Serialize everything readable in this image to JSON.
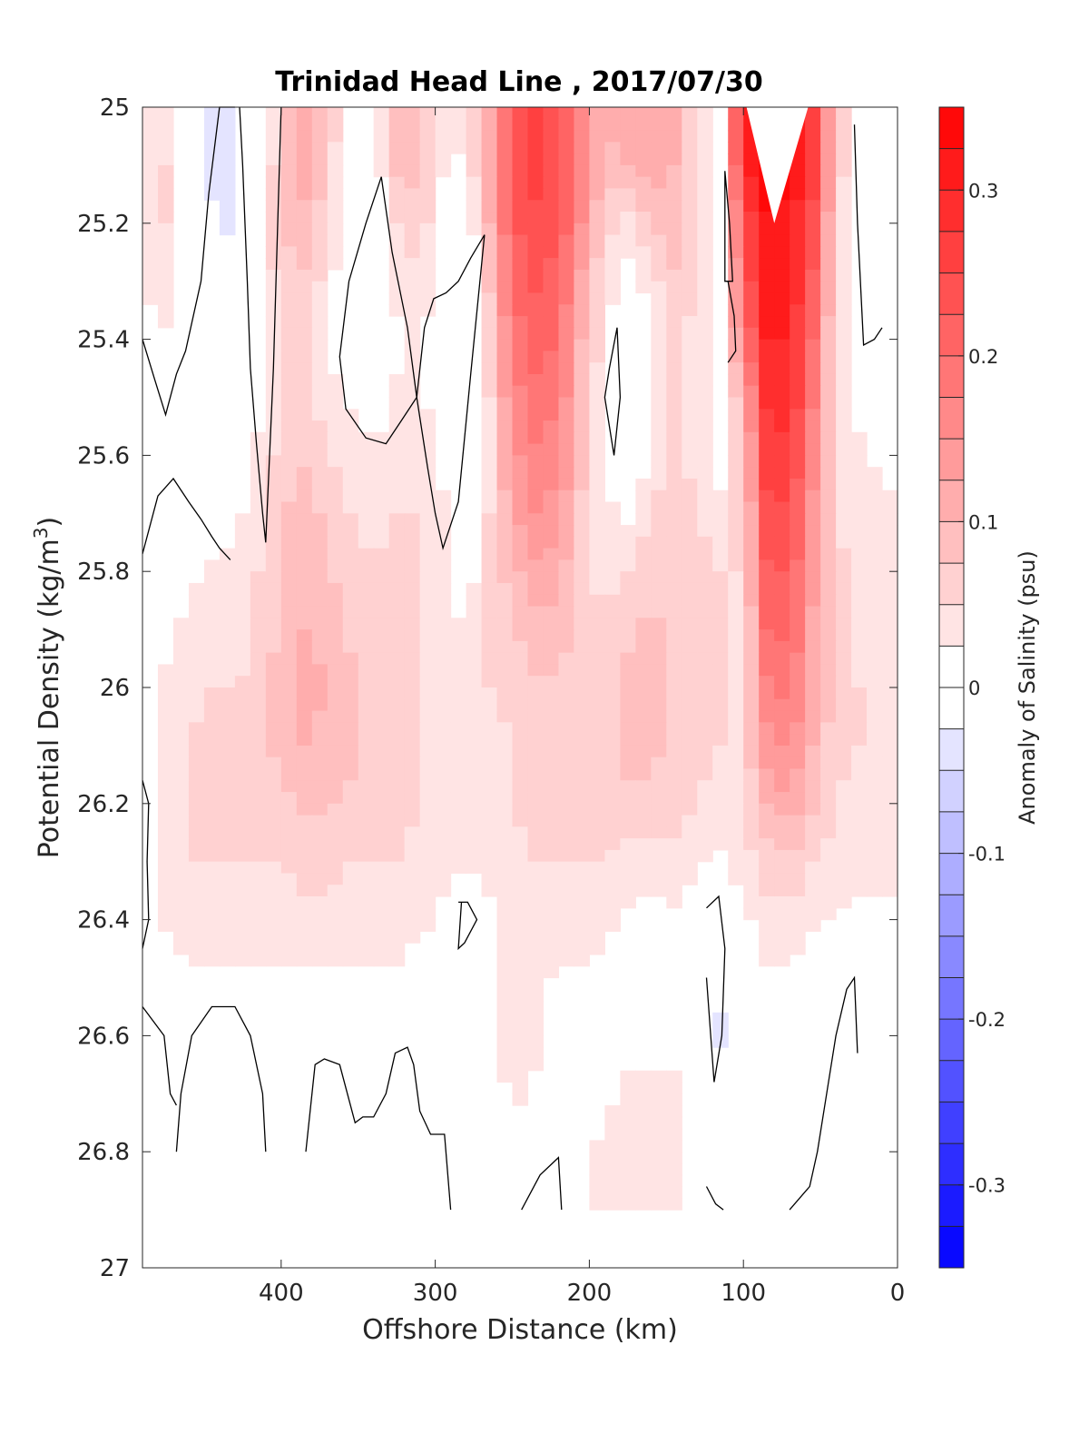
{
  "chart_data": {
    "type": "heatmap",
    "title": "Trinidad Head Line , 2017/07/30",
    "xlabel": "Offshore Distance (km)",
    "ylabel_main": "Potential Density (kg/m",
    "ylabel_sup": "3",
    "ylabel_close": ")",
    "colorbar_label": "Anomaly of Salinity (psu)",
    "xlim": [
      490,
      0
    ],
    "ylim": [
      25,
      27
    ],
    "x_ticks": [
      400,
      300,
      200,
      100,
      0
    ],
    "y_ticks": [
      "25",
      "25.2",
      "25.4",
      "25.6",
      "25.8",
      "26",
      "26.2",
      "26.4",
      "26.6",
      "26.8",
      "27"
    ],
    "y_tick_values": [
      25,
      25.2,
      25.4,
      25.6,
      25.8,
      26,
      26.2,
      26.4,
      26.6,
      26.8,
      27
    ],
    "colorbar_ticks": [
      "0.3",
      "0.2",
      "0.1",
      "0",
      "-0.1",
      "-0.2",
      "-0.3"
    ],
    "colorbar_tick_values": [
      0.3,
      0.2,
      0.1,
      0,
      -0.1,
      -0.2,
      -0.3
    ],
    "clim": [
      -0.35,
      0.35
    ],
    "colormap": {
      "negative": "#0000ff",
      "zero": "#ffffff",
      "positive": "#ff0000"
    },
    "levels_step": 0.025,
    "x": [
      490,
      475,
      460,
      445,
      430,
      415,
      400,
      385,
      370,
      355,
      340,
      325,
      310,
      295,
      280,
      265,
      250,
      235,
      220,
      205,
      190,
      175,
      160,
      145,
      130,
      115,
      100,
      85,
      70,
      55,
      40,
      25,
      10
    ],
    "y": [
      25.0,
      25.1,
      25.2,
      25.3,
      25.4,
      25.5,
      25.6,
      25.7,
      25.8,
      25.9,
      26.0,
      26.1,
      26.2,
      26.3,
      26.4,
      26.5,
      26.6,
      26.7,
      26.8,
      26.9
    ],
    "z": [
      [
        0.04,
        0.04,
        0.0,
        -0.03,
        -0.04,
        0.01,
        0.06,
        0.11,
        0.07,
        0.02,
        0.03,
        0.09,
        0.07,
        0.03,
        0.03,
        0.12,
        0.22,
        0.25,
        0.23,
        0.16,
        0.1,
        0.12,
        0.12,
        0.1,
        0.06,
        0.0,
        0.3,
        0.34,
        0.33,
        0.25,
        0.08,
        0.0,
        0.0
      ],
      [
        0.04,
        0.05,
        0.0,
        -0.03,
        -0.04,
        0.01,
        0.07,
        0.11,
        0.07,
        0.0,
        0.0,
        0.08,
        0.08,
        0.03,
        0.02,
        0.12,
        0.23,
        0.26,
        0.24,
        0.16,
        0.09,
        0.1,
        0.12,
        0.1,
        0.06,
        0.0,
        0.3,
        0.34,
        0.33,
        0.26,
        0.08,
        0.0,
        0.0
      ],
      [
        0.04,
        0.05,
        0.0,
        -0.02,
        -0.03,
        0.02,
        0.08,
        0.09,
        0.06,
        -0.01,
        -0.01,
        0.05,
        0.07,
        0.01,
        -0.01,
        0.1,
        0.22,
        0.24,
        0.23,
        0.15,
        0.06,
        0.04,
        0.08,
        0.09,
        0.05,
        -0.01,
        0.24,
        0.32,
        0.32,
        0.24,
        0.06,
        -0.01,
        0.0
      ],
      [
        0.03,
        0.04,
        0.0,
        -0.02,
        -0.02,
        0.02,
        0.06,
        0.07,
        0.04,
        -0.01,
        -0.01,
        0.03,
        0.05,
        0.0,
        -0.02,
        0.08,
        0.2,
        0.23,
        0.21,
        0.12,
        0.04,
        0.01,
        0.04,
        0.07,
        0.05,
        0.0,
        0.22,
        0.31,
        0.31,
        0.22,
        0.05,
        0.0,
        0.0
      ],
      [
        0.01,
        0.02,
        0.0,
        -0.02,
        -0.02,
        0.02,
        0.05,
        0.05,
        0.03,
        -0.01,
        -0.01,
        0.02,
        0.03,
        -0.01,
        -0.02,
        0.06,
        0.18,
        0.21,
        0.2,
        0.1,
        0.03,
        -0.01,
        0.02,
        0.05,
        0.04,
        0.0,
        0.18,
        0.3,
        0.3,
        0.2,
        0.04,
        0.0,
        0.0
      ],
      [
        -0.01,
        0.0,
        0.01,
        -0.02,
        -0.02,
        0.02,
        0.05,
        0.05,
        0.04,
        0.02,
        0.0,
        0.03,
        0.04,
        -0.01,
        -0.01,
        0.05,
        0.16,
        0.19,
        0.18,
        0.09,
        0.02,
        -0.02,
        0.02,
        0.05,
        0.04,
        0.02,
        0.1,
        0.28,
        0.29,
        0.18,
        0.04,
        0.02,
        0.0
      ],
      [
        0.0,
        0.01,
        0.02,
        -0.01,
        -0.01,
        0.03,
        0.06,
        0.07,
        0.05,
        0.04,
        0.03,
        0.04,
        0.05,
        0.02,
        -0.01,
        0.04,
        0.14,
        0.17,
        0.16,
        0.08,
        0.03,
        -0.01,
        0.03,
        0.06,
        0.04,
        0.02,
        0.08,
        0.26,
        0.27,
        0.16,
        0.04,
        0.03,
        0.02
      ],
      [
        -0.01,
        0.0,
        0.02,
        0.01,
        0.02,
        0.04,
        0.07,
        0.09,
        0.07,
        0.05,
        0.04,
        0.05,
        0.05,
        0.03,
        -0.01,
        0.05,
        0.12,
        0.15,
        0.14,
        0.07,
        0.03,
        0.02,
        0.05,
        0.07,
        0.05,
        0.03,
        0.06,
        0.24,
        0.25,
        0.14,
        0.05,
        0.03,
        0.03
      ],
      [
        0.0,
        0.01,
        0.02,
        0.03,
        0.03,
        0.05,
        0.07,
        0.09,
        0.08,
        0.06,
        0.05,
        0.06,
        0.05,
        0.03,
        0.01,
        0.05,
        0.09,
        0.12,
        0.11,
        0.06,
        0.04,
        0.05,
        0.07,
        0.07,
        0.06,
        0.05,
        0.05,
        0.22,
        0.23,
        0.13,
        0.06,
        0.04,
        0.03
      ],
      [
        0.01,
        0.02,
        0.03,
        0.03,
        0.03,
        0.05,
        0.08,
        0.1,
        0.09,
        0.07,
        0.06,
        0.06,
        0.05,
        0.04,
        0.02,
        0.05,
        0.07,
        0.09,
        0.09,
        0.06,
        0.05,
        0.07,
        0.08,
        0.07,
        0.06,
        0.05,
        0.04,
        0.2,
        0.21,
        0.12,
        0.06,
        0.04,
        0.03
      ],
      [
        0.02,
        0.03,
        0.04,
        0.05,
        0.05,
        0.06,
        0.09,
        0.11,
        0.1,
        0.08,
        0.07,
        0.06,
        0.05,
        0.04,
        0.03,
        0.05,
        0.06,
        0.07,
        0.07,
        0.06,
        0.06,
        0.08,
        0.08,
        0.07,
        0.06,
        0.05,
        0.04,
        0.17,
        0.19,
        0.11,
        0.06,
        0.05,
        0.03
      ],
      [
        0.02,
        0.03,
        0.05,
        0.06,
        0.06,
        0.07,
        0.08,
        0.1,
        0.09,
        0.08,
        0.07,
        0.06,
        0.05,
        0.04,
        0.03,
        0.04,
        0.05,
        0.06,
        0.06,
        0.06,
        0.07,
        0.08,
        0.08,
        0.07,
        0.06,
        0.05,
        0.05,
        0.14,
        0.16,
        0.1,
        0.06,
        0.05,
        0.03
      ],
      [
        0.02,
        0.03,
        0.05,
        0.06,
        0.06,
        0.06,
        0.07,
        0.08,
        0.08,
        0.07,
        0.06,
        0.06,
        0.05,
        0.04,
        0.03,
        0.04,
        0.05,
        0.06,
        0.06,
        0.06,
        0.06,
        0.07,
        0.07,
        0.06,
        0.05,
        0.04,
        0.05,
        0.1,
        0.12,
        0.08,
        0.05,
        0.04,
        0.03
      ],
      [
        0.02,
        0.03,
        0.05,
        0.05,
        0.05,
        0.05,
        0.05,
        0.06,
        0.06,
        0.05,
        0.05,
        0.05,
        0.04,
        0.03,
        0.03,
        0.03,
        0.04,
        0.05,
        0.05,
        0.05,
        0.05,
        0.04,
        0.03,
        0.04,
        0.03,
        0.02,
        0.04,
        0.06,
        0.07,
        0.05,
        0.04,
        0.03,
        0.03
      ],
      [
        0.02,
        0.03,
        0.04,
        0.04,
        0.04,
        0.04,
        0.04,
        0.04,
        0.04,
        0.04,
        0.04,
        0.04,
        0.03,
        0.02,
        0.0,
        0.02,
        0.03,
        0.04,
        0.04,
        0.04,
        0.03,
        0.02,
        0.02,
        0.02,
        0.0,
        -0.01,
        0.02,
        0.04,
        0.04,
        0.03,
        0.02,
        0.02,
        0.02
      ],
      [
        0.0,
        0.01,
        0.02,
        0.02,
        0.02,
        0.02,
        0.02,
        0.02,
        0.02,
        0.02,
        0.02,
        0.02,
        0.01,
        0.01,
        0.01,
        0.02,
        0.03,
        0.03,
        0.02,
        0.02,
        0.02,
        0.0,
        0.01,
        0.02,
        0.0,
        -0.02,
        0.0,
        0.02,
        0.02,
        0.01,
        0.01,
        0.01,
        0.0
      ],
      [
        0.0,
        0.0,
        0.0,
        -0.01,
        -0.01,
        0.0,
        0.01,
        0.01,
        0.01,
        0.01,
        0.0,
        0.0,
        0.0,
        0.01,
        0.01,
        0.02,
        0.04,
        0.03,
        0.01,
        0.01,
        0.02,
        0.02,
        0.02,
        0.02,
        0.0,
        -0.03,
        0.0,
        0.02,
        0.02,
        0.01,
        0.0,
        0.0,
        0.0
      ],
      [
        0.0,
        -0.01,
        -0.01,
        -0.01,
        -0.01,
        0.0,
        0.0,
        0.0,
        0.0,
        0.0,
        0.0,
        0.0,
        0.0,
        0.0,
        0.0,
        0.01,
        0.03,
        0.02,
        0.01,
        0.01,
        0.02,
        0.03,
        0.03,
        0.03,
        0.01,
        -0.01,
        0.01,
        0.02,
        0.02,
        0.01,
        0.0,
        0.0,
        0.0
      ],
      [
        0.01,
        0.0,
        -0.01,
        -0.02,
        -0.02,
        0.0,
        0.0,
        0.0,
        0.0,
        0.0,
        0.0,
        0.0,
        0.0,
        0.0,
        0.0,
        0.0,
        0.02,
        0.02,
        0.01,
        0.02,
        0.03,
        0.03,
        0.03,
        0.03,
        0.02,
        0.0,
        0.01,
        0.02,
        0.01,
        0.0,
        0.0,
        0.0,
        0.0
      ],
      [
        0.0,
        0.0,
        0.0,
        0.0,
        0.0,
        0.0,
        0.0,
        0.0,
        0.0,
        -0.01,
        -0.02,
        0.0,
        0.0,
        0.0,
        0.0,
        0.0,
        0.01,
        0.01,
        0.01,
        0.02,
        0.03,
        0.03,
        0.03,
        0.03,
        0.02,
        0.0,
        0.0,
        0.01,
        0.0,
        0.0,
        0.0,
        0.0,
        0.0
      ]
    ],
    "z_ymax_data": 26.9,
    "cap_notch": {
      "x": [
        98,
        80,
        58
      ],
      "y": [
        25.0,
        25.2,
        25.0
      ]
    },
    "contour_lines": [
      {
        "x": [
          490,
          482,
          475,
          468,
          462,
          452,
          447,
          440,
          430
        ],
        "y": [
          25.4,
          25.47,
          25.53,
          25.46,
          25.42,
          25.3,
          25.15,
          25.0,
          25.0
        ]
      },
      {
        "x": [
          490,
          480,
          470,
          460,
          452,
          445,
          440,
          433
        ],
        "y": [
          25.77,
          25.67,
          25.64,
          25.68,
          25.71,
          25.74,
          25.76,
          25.78
        ]
      },
      {
        "x": [
          427,
          425,
          422,
          420,
          416,
          412,
          410,
          405,
          400
        ],
        "y": [
          25.0,
          25.1,
          25.3,
          25.45,
          25.58,
          25.7,
          25.75,
          25.45,
          25.0
        ]
      },
      {
        "x": [
          335,
          345,
          356,
          362,
          358,
          345,
          332,
          322,
          312
        ],
        "y": [
          25.12,
          25.2,
          25.3,
          25.43,
          25.52,
          25.57,
          25.58,
          25.54,
          25.5
        ]
      },
      {
        "x": [
          335,
          328,
          318,
          312,
          305,
          300,
          295,
          285,
          277,
          268
        ],
        "y": [
          25.12,
          25.25,
          25.38,
          25.5,
          25.62,
          25.7,
          25.76,
          25.68,
          25.46,
          25.22
        ]
      },
      {
        "x": [
          312,
          307,
          301,
          293,
          285,
          277,
          268
        ],
        "y": [
          25.5,
          25.38,
          25.33,
          25.32,
          25.3,
          25.26,
          25.22
        ]
      },
      {
        "x": [
          182,
          187,
          190,
          184,
          180,
          182
        ],
        "y": [
          25.38,
          25.45,
          25.5,
          25.6,
          25.5,
          25.38
        ]
      },
      {
        "x": [
          112,
          109,
          107,
          112,
          112
        ],
        "y": [
          25.11,
          25.2,
          25.3,
          25.3,
          25.11
        ]
      },
      {
        "x": [
          110,
          106,
          105,
          110
        ],
        "y": [
          25.3,
          25.36,
          25.42,
          25.44
        ]
      },
      {
        "x": [
          28,
          26,
          22,
          15,
          10
        ],
        "y": [
          25.03,
          25.2,
          25.41,
          25.4,
          25.38
        ]
      },
      {
        "x": [
          490,
          486,
          487,
          486,
          490
        ],
        "y": [
          26.16,
          26.2,
          26.3,
          26.4,
          26.45
        ]
      },
      {
        "x": [
          490,
          476,
          472,
          468
        ],
        "y": [
          26.55,
          26.6,
          26.7,
          26.72
        ]
      },
      {
        "x": [
          468,
          465,
          458,
          445,
          430,
          420,
          412,
          410
        ],
        "y": [
          26.8,
          26.7,
          26.6,
          26.55,
          26.55,
          26.6,
          26.7,
          26.8
        ]
      },
      {
        "x": [
          384,
          378,
          372,
          362,
          357,
          352,
          347,
          340,
          332,
          326,
          318,
          314,
          310,
          303,
          294,
          290
        ],
        "y": [
          26.8,
          26.65,
          26.64,
          26.65,
          26.7,
          26.75,
          26.74,
          26.74,
          26.7,
          26.63,
          26.62,
          26.65,
          26.73,
          26.77,
          26.77,
          26.9
        ]
      },
      {
        "x": [
          285,
          279,
          273,
          281,
          285,
          283
        ],
        "y": [
          26.37,
          26.37,
          26.4,
          26.44,
          26.45,
          26.37
        ]
      },
      {
        "x": [
          244,
          232,
          220,
          218
        ],
        "y": [
          26.9,
          26.84,
          26.81,
          26.9
        ]
      },
      {
        "x": [
          124,
          116,
          112,
          114,
          119,
          124
        ],
        "y": [
          26.38,
          26.36,
          26.45,
          26.6,
          26.68,
          26.5
        ]
      },
      {
        "x": [
          124,
          118,
          113
        ],
        "y": [
          26.86,
          26.89,
          26.9
        ]
      },
      {
        "x": [
          70,
          57,
          52,
          46,
          40,
          33,
          28,
          26
        ],
        "y": [
          26.9,
          26.86,
          26.8,
          26.7,
          26.6,
          26.52,
          26.5,
          26.63
        ]
      }
    ]
  }
}
